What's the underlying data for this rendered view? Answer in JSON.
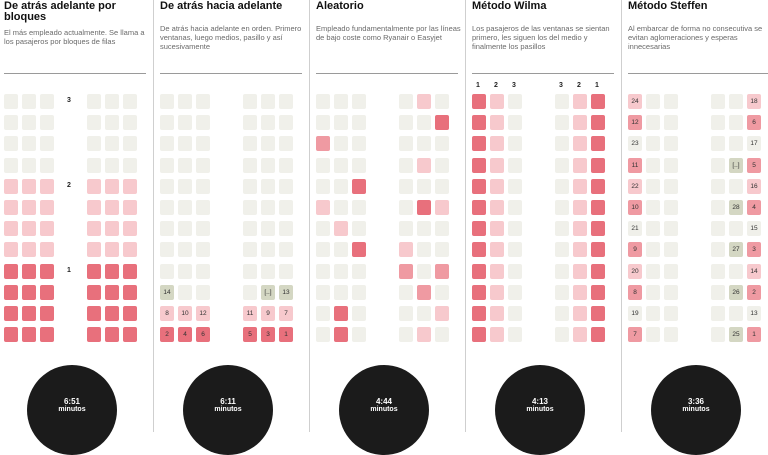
{
  "colors": {
    "none": "#f0f0ea",
    "light": "#f7c9cd",
    "mid": "#ef9aa2",
    "dark": "#e8707c",
    "gray": "#d4d7c3",
    "circle": "#1b1b1b"
  },
  "methods": [
    {
      "title": "De atrás adelante por bloques",
      "description": "El más empleado actualmente. Se llama a los pasajeros por bloques de filas",
      "time": "6:51",
      "unit": "minutos",
      "row_labels": [
        "",
        "",
        "",
        "",
        "",
        "",
        "",
        "",
        "",
        "",
        "",
        ""
      ],
      "middle_marks": [
        "3",
        "",
        "",
        "",
        "2",
        "",
        "",
        "",
        "1",
        "",
        "",
        ""
      ],
      "top_labels": [
        "",
        "",
        "",
        "",
        "",
        ""
      ],
      "seats": [
        [
          "0",
          "0",
          "0",
          "0",
          "0",
          "0"
        ],
        [
          "0",
          "0",
          "0",
          "0",
          "0",
          "0"
        ],
        [
          "0",
          "0",
          "0",
          "0",
          "0",
          "0"
        ],
        [
          "0",
          "0",
          "0",
          "0",
          "0",
          "0"
        ],
        [
          "1",
          "1",
          "1",
          "1",
          "1",
          "1"
        ],
        [
          "1",
          "1",
          "1",
          "1",
          "1",
          "1"
        ],
        [
          "1",
          "1",
          "1",
          "1",
          "1",
          "1"
        ],
        [
          "1",
          "1",
          "1",
          "1",
          "1",
          "1"
        ],
        [
          "3",
          "3",
          "3",
          "3",
          "3",
          "3"
        ],
        [
          "3",
          "3",
          "3",
          "3",
          "3",
          "3"
        ],
        [
          "3",
          "3",
          "3",
          "3",
          "3",
          "3"
        ],
        [
          "3",
          "3",
          "3",
          "3",
          "3",
          "3"
        ]
      ],
      "seat_text": [
        [
          "",
          "",
          "",
          "",
          "",
          ""
        ],
        [
          "",
          "",
          "",
          "",
          "",
          ""
        ],
        [
          "",
          "",
          "",
          "",
          "",
          ""
        ],
        [
          "",
          "",
          "",
          "",
          "",
          ""
        ],
        [
          "",
          "",
          "",
          "",
          "",
          ""
        ],
        [
          "",
          "",
          "",
          "",
          "",
          ""
        ],
        [
          "",
          "",
          "",
          "",
          "",
          ""
        ],
        [
          "",
          "",
          "",
          "",
          "",
          ""
        ],
        [
          "",
          "",
          "",
          "",
          "",
          ""
        ],
        [
          "",
          "",
          "",
          "",
          "",
          ""
        ],
        [
          "",
          "",
          "",
          "",
          "",
          ""
        ],
        [
          "",
          "",
          "",
          "",
          "",
          ""
        ]
      ]
    },
    {
      "title": "De atrás hacia adelante",
      "description": "De atrás hacia adelante en orden. Primero ventanas, luego medios, pasillo y así sucesivamente",
      "time": "6:11",
      "unit": "minutos",
      "middle_marks": [
        "",
        "",
        "",
        "",
        "",
        "",
        "",
        "",
        "",
        "",
        "",
        ""
      ],
      "top_labels": [
        "",
        "",
        "",
        "",
        "",
        ""
      ],
      "seats": [
        [
          "0",
          "0",
          "0",
          "0",
          "0",
          "0"
        ],
        [
          "0",
          "0",
          "0",
          "0",
          "0",
          "0"
        ],
        [
          "0",
          "0",
          "0",
          "0",
          "0",
          "0"
        ],
        [
          "0",
          "0",
          "0",
          "0",
          "0",
          "0"
        ],
        [
          "0",
          "0",
          "0",
          "0",
          "0",
          "0"
        ],
        [
          "0",
          "0",
          "0",
          "0",
          "0",
          "0"
        ],
        [
          "0",
          "0",
          "0",
          "0",
          "0",
          "0"
        ],
        [
          "0",
          "0",
          "0",
          "0",
          "0",
          "0"
        ],
        [
          "0",
          "0",
          "0",
          "0",
          "0",
          "0"
        ],
        [
          "g",
          "0",
          "0",
          "0",
          "g",
          "g"
        ],
        [
          "1",
          "1",
          "1",
          "1",
          "1",
          "1"
        ],
        [
          "3",
          "3",
          "3",
          "3",
          "3",
          "3"
        ]
      ],
      "seat_text": [
        [
          "",
          "",
          "",
          "",
          "",
          ""
        ],
        [
          "",
          "",
          "",
          "",
          "",
          ""
        ],
        [
          "",
          "",
          "",
          "",
          "",
          ""
        ],
        [
          "",
          "",
          "",
          "",
          "",
          ""
        ],
        [
          "",
          "",
          "",
          "",
          "",
          ""
        ],
        [
          "",
          "",
          "",
          "",
          "",
          ""
        ],
        [
          "",
          "",
          "",
          "",
          "",
          ""
        ],
        [
          "",
          "",
          "",
          "",
          "",
          ""
        ],
        [
          "",
          "",
          "",
          "",
          "",
          ""
        ],
        [
          "14",
          "",
          "",
          "",
          "[..]",
          "13"
        ],
        [
          "8",
          "10",
          "12",
          "11",
          "9",
          "7"
        ],
        [
          "2",
          "4",
          "6",
          "5",
          "3",
          "1"
        ]
      ]
    },
    {
      "title": "Aleatorio",
      "description": "Empleado fundamentalmente por las líneas de bajo coste como Ryanair o Easyjet",
      "time": "4:44",
      "unit": "minutos",
      "middle_marks": [
        "",
        "",
        "",
        "",
        "",
        "",
        "",
        "",
        "",
        "",
        "",
        ""
      ],
      "top_labels": [
        "",
        "",
        "",
        "",
        "",
        ""
      ],
      "seats": [
        [
          "0",
          "0",
          "0",
          "0",
          "1",
          "0"
        ],
        [
          "0",
          "0",
          "0",
          "0",
          "0",
          "3"
        ],
        [
          "2",
          "0",
          "0",
          "0",
          "0",
          "0"
        ],
        [
          "0",
          "0",
          "0",
          "0",
          "1",
          "0"
        ],
        [
          "0",
          "0",
          "3",
          "0",
          "0",
          "0"
        ],
        [
          "1",
          "0",
          "0",
          "0",
          "3",
          "1"
        ],
        [
          "0",
          "1",
          "0",
          "0",
          "0",
          "0"
        ],
        [
          "0",
          "0",
          "3",
          "1",
          "0",
          "0"
        ],
        [
          "0",
          "0",
          "0",
          "2",
          "0",
          "2"
        ],
        [
          "0",
          "0",
          "0",
          "0",
          "2",
          "0"
        ],
        [
          "0",
          "3",
          "0",
          "0",
          "0",
          "1"
        ],
        [
          "0",
          "3",
          "0",
          "0",
          "1",
          "0"
        ]
      ],
      "seat_text": [
        [
          "",
          "",
          "",
          "",
          "",
          ""
        ],
        [
          "",
          "",
          "",
          "",
          "",
          ""
        ],
        [
          "",
          "",
          "",
          "",
          "",
          ""
        ],
        [
          "",
          "",
          "",
          "",
          "",
          ""
        ],
        [
          "",
          "",
          "",
          "",
          "",
          ""
        ],
        [
          "",
          "",
          "",
          "",
          "",
          ""
        ],
        [
          "",
          "",
          "",
          "",
          "",
          ""
        ],
        [
          "",
          "",
          "",
          "",
          "",
          ""
        ],
        [
          "",
          "",
          "",
          "",
          "",
          ""
        ],
        [
          "",
          "",
          "",
          "",
          "",
          ""
        ],
        [
          "",
          "",
          "",
          "",
          "",
          ""
        ],
        [
          "",
          "",
          "",
          "",
          "",
          ""
        ]
      ]
    },
    {
      "title": "Método Wilma",
      "description": "Los pasajeros de las ventanas se sientan primero, les siguen los del medio y finalmente los pasillos",
      "time": "4:13",
      "unit": "minutos",
      "middle_marks": [
        "",
        "",
        "",
        "",
        "",
        "",
        "",
        "",
        "",
        "",
        "",
        ""
      ],
      "top_labels": [
        "1",
        "2",
        "3",
        "3",
        "2",
        "1"
      ],
      "seats": [
        [
          "3",
          "1",
          "0",
          "0",
          "1",
          "3"
        ],
        [
          "3",
          "1",
          "0",
          "0",
          "1",
          "3"
        ],
        [
          "3",
          "1",
          "0",
          "0",
          "1",
          "3"
        ],
        [
          "3",
          "1",
          "0",
          "0",
          "1",
          "3"
        ],
        [
          "3",
          "1",
          "0",
          "0",
          "1",
          "3"
        ],
        [
          "3",
          "1",
          "0",
          "0",
          "1",
          "3"
        ],
        [
          "3",
          "1",
          "0",
          "0",
          "1",
          "3"
        ],
        [
          "3",
          "1",
          "0",
          "0",
          "1",
          "3"
        ],
        [
          "3",
          "1",
          "0",
          "0",
          "1",
          "3"
        ],
        [
          "3",
          "1",
          "0",
          "0",
          "1",
          "3"
        ],
        [
          "3",
          "1",
          "0",
          "0",
          "1",
          "3"
        ],
        [
          "3",
          "1",
          "0",
          "0",
          "1",
          "3"
        ]
      ],
      "seat_text": [
        [
          "",
          "",
          "",
          "",
          "",
          ""
        ],
        [
          "",
          "",
          "",
          "",
          "",
          ""
        ],
        [
          "",
          "",
          "",
          "",
          "",
          ""
        ],
        [
          "",
          "",
          "",
          "",
          "",
          ""
        ],
        [
          "",
          "",
          "",
          "",
          "",
          ""
        ],
        [
          "",
          "",
          "",
          "",
          "",
          ""
        ],
        [
          "",
          "",
          "",
          "",
          "",
          ""
        ],
        [
          "",
          "",
          "",
          "",
          "",
          ""
        ],
        [
          "",
          "",
          "",
          "",
          "",
          ""
        ],
        [
          "",
          "",
          "",
          "",
          "",
          ""
        ],
        [
          "",
          "",
          "",
          "",
          "",
          ""
        ],
        [
          "",
          "",
          "",
          "",
          "",
          ""
        ]
      ]
    },
    {
      "title": "Método Steffen",
      "description": "Al embarcar de forma no consecutiva se evitan aglomeraciones y esperas innecesarias",
      "time": "3:36",
      "unit": "minutos",
      "middle_marks": [
        "",
        "",
        "",
        "",
        "",
        "",
        "",
        "",
        "",
        "",
        "",
        ""
      ],
      "top_labels": [
        "",
        "",
        "",
        "",
        "",
        ""
      ],
      "seats": [
        [
          "1",
          "0",
          "0",
          "0",
          "0",
          "1"
        ],
        [
          "2",
          "0",
          "0",
          "0",
          "0",
          "2"
        ],
        [
          "0",
          "0",
          "0",
          "0",
          "0",
          "0"
        ],
        [
          "2",
          "0",
          "0",
          "0",
          "g",
          "2"
        ],
        [
          "1",
          "0",
          "0",
          "0",
          "0",
          "1"
        ],
        [
          "2",
          "0",
          "0",
          "0",
          "g",
          "2"
        ],
        [
          "0",
          "0",
          "0",
          "0",
          "0",
          "0"
        ],
        [
          "2",
          "0",
          "0",
          "0",
          "g",
          "2"
        ],
        [
          "1",
          "0",
          "0",
          "0",
          "0",
          "1"
        ],
        [
          "2",
          "0",
          "0",
          "0",
          "g",
          "2"
        ],
        [
          "0",
          "0",
          "0",
          "0",
          "0",
          "0"
        ],
        [
          "2",
          "0",
          "0",
          "0",
          "g",
          "2"
        ]
      ],
      "seat_text": [
        [
          "24",
          "",
          "",
          "",
          "",
          "18"
        ],
        [
          "12",
          "",
          "",
          "",
          "",
          "6"
        ],
        [
          "23",
          "",
          "",
          "",
          "",
          "17"
        ],
        [
          "11",
          "",
          "",
          "",
          "[..]",
          "5"
        ],
        [
          "22",
          "",
          "",
          "",
          "",
          "16"
        ],
        [
          "10",
          "",
          "",
          "",
          "28",
          "4"
        ],
        [
          "21",
          "",
          "",
          "",
          "",
          "15"
        ],
        [
          "9",
          "",
          "",
          "",
          "27",
          "3"
        ],
        [
          "20",
          "",
          "",
          "",
          "",
          "14"
        ],
        [
          "8",
          "",
          "",
          "",
          "26",
          "2"
        ],
        [
          "19",
          "",
          "",
          "",
          "",
          "13"
        ],
        [
          "7",
          "",
          "",
          "",
          "25",
          "1"
        ]
      ]
    }
  ]
}
